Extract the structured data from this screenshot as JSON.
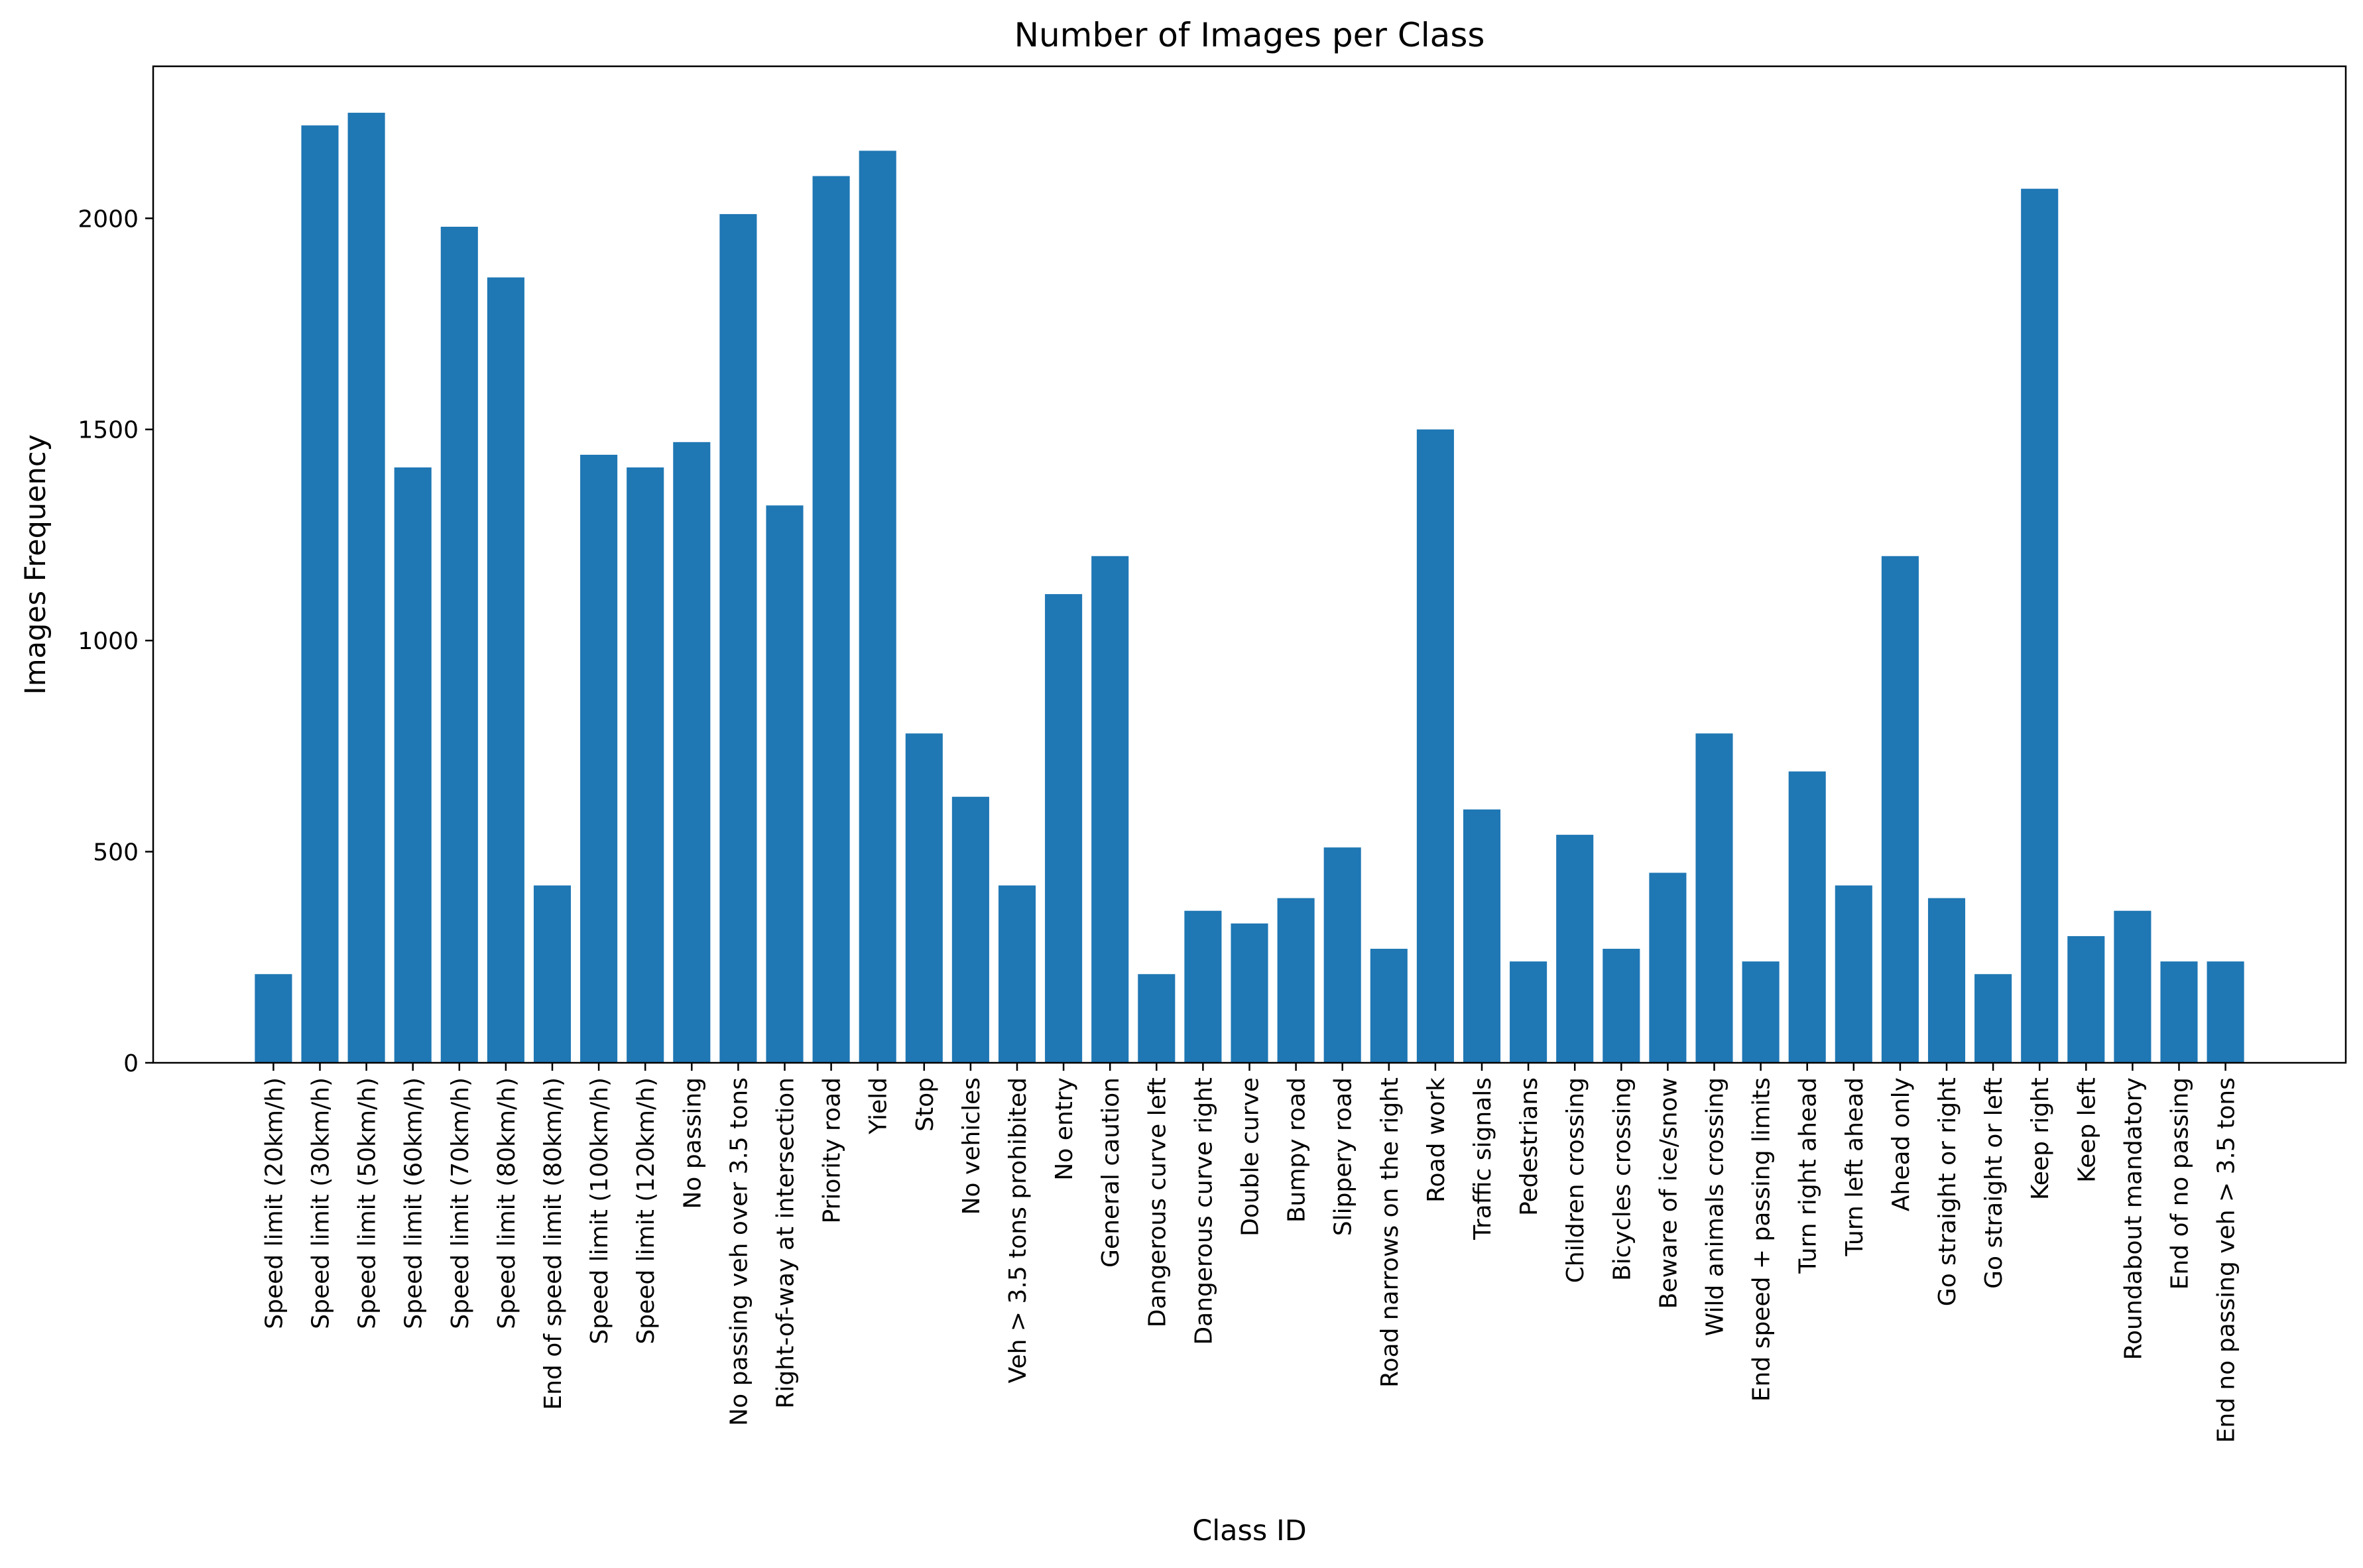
{
  "chart_data": {
    "type": "bar",
    "title": "Number of Images per Class",
    "xlabel": "Class ID",
    "ylabel": "Images Frequency",
    "ylim": [
      0,
      2360
    ],
    "yticks": [
      0,
      500,
      1000,
      1500,
      2000
    ],
    "grid": false,
    "bar_color": "#1f77b4",
    "categories": [
      "Speed limit (20km/h)",
      "Speed limit (30km/h)",
      "Speed limit (50km/h)",
      "Speed limit (60km/h)",
      "Speed limit (70km/h)",
      "Speed limit (80km/h)",
      "End of speed limit (80km/h)",
      "Speed limit (100km/h)",
      "Speed limit (120km/h)",
      "No passing",
      "No passing veh over 3.5 tons",
      "Right-of-way at intersection",
      "Priority road",
      "Yield",
      "Stop",
      "No vehicles",
      "Veh > 3.5 tons prohibited",
      "No entry",
      "General caution",
      "Dangerous curve left",
      "Dangerous curve right",
      "Double curve",
      "Bumpy road",
      "Slippery road",
      "Road narrows on the right",
      "Road work",
      "Traffic signals",
      "Pedestrians",
      "Children crossing",
      "Bicycles crossing",
      "Beware of ice/snow",
      "Wild animals crossing",
      "End speed + passing limits",
      "Turn right ahead",
      "Turn left ahead",
      "Ahead only",
      "Go straight or right",
      "Go straight or left",
      "Keep right",
      "Keep left",
      "Roundabout mandatory",
      "End of no passing",
      "End no passing veh > 3.5 tons"
    ],
    "values": [
      210,
      2220,
      2250,
      1410,
      1980,
      1860,
      420,
      1440,
      1410,
      1470,
      2010,
      1320,
      2100,
      2160,
      780,
      630,
      420,
      1110,
      1200,
      210,
      360,
      330,
      390,
      510,
      270,
      1500,
      600,
      240,
      540,
      270,
      450,
      780,
      240,
      690,
      420,
      1200,
      390,
      210,
      2070,
      300,
      360,
      240,
      240
    ]
  }
}
